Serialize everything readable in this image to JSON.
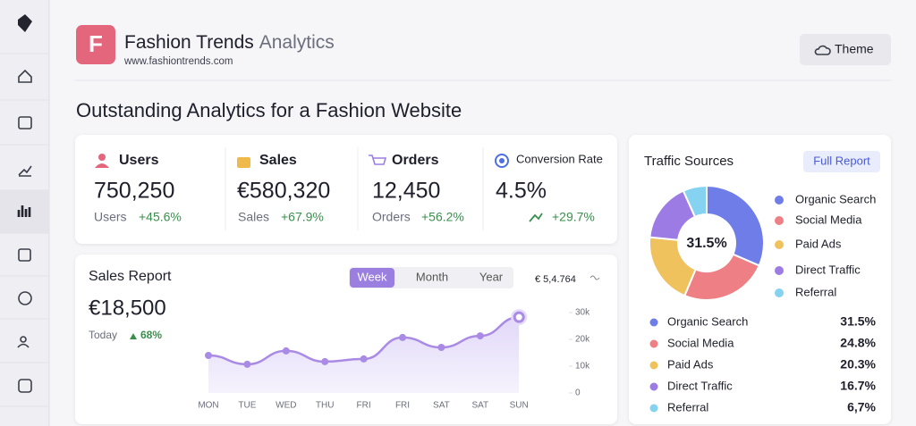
{
  "header": {
    "logo": "F",
    "title": "Fashion Trends",
    "title_suffix": "Analytics",
    "url": "www.fashiontrends.com",
    "theme_button": "Theme"
  },
  "page_title": "Outstanding Analytics for a Fashion Website",
  "stats": [
    {
      "label": "Users",
      "value": "750,250",
      "sub_label": "Users",
      "change": "+45.6%"
    },
    {
      "label": "Sales",
      "value": "€580,320",
      "sub_label": "Sales",
      "change": "+67.9%"
    },
    {
      "label": "Orders",
      "value": "12,450",
      "sub_label": "Orders",
      "change": "+56.2%"
    },
    {
      "label": "Conversion Rate",
      "value": "4.5%",
      "change": "+29.7%"
    }
  ],
  "sales_report": {
    "title": "Sales Report",
    "tabs": [
      "Week",
      "Month",
      "Year"
    ],
    "active_tab": "Week",
    "total_note": "€ 5,4.764",
    "amount": "€18,500",
    "period": "Today",
    "change": "68%",
    "chart": {
      "type": "line",
      "color": "#a98be6",
      "categories": [
        "MON",
        "TUE",
        "WED",
        "THU",
        "FRI",
        "FRI",
        "SAT",
        "SAT",
        "SUN"
      ],
      "values": [
        14,
        10.7,
        15.7,
        11.7,
        12.7,
        20.7,
        17,
        21.3,
        28.3
      ],
      "ylim": [
        0,
        30
      ],
      "yticks": [
        0,
        {
          "value": 10,
          "label": "10k"
        },
        {
          "value": 20,
          "label": "20k"
        },
        {
          "value": 30,
          "label": "30k"
        }
      ]
    }
  },
  "traffic": {
    "title": "Traffic Sources",
    "button": "Full Report",
    "chart": {
      "type": "pie",
      "categories": [
        "Organic Search",
        "Social Media",
        "Paid Ads",
        "Direct Traffic",
        "Referral"
      ],
      "values": [
        31.5,
        24.8,
        20.3,
        16.7,
        6.7
      ],
      "value_labels": [
        "31.5%",
        "24.8%",
        "20.3%",
        "16.7%",
        "6,7%"
      ],
      "colors": [
        "#6f7de8",
        "#ee7f84",
        "#f0c25e",
        "#9d7be4",
        "#86d2f1"
      ]
    }
  }
}
